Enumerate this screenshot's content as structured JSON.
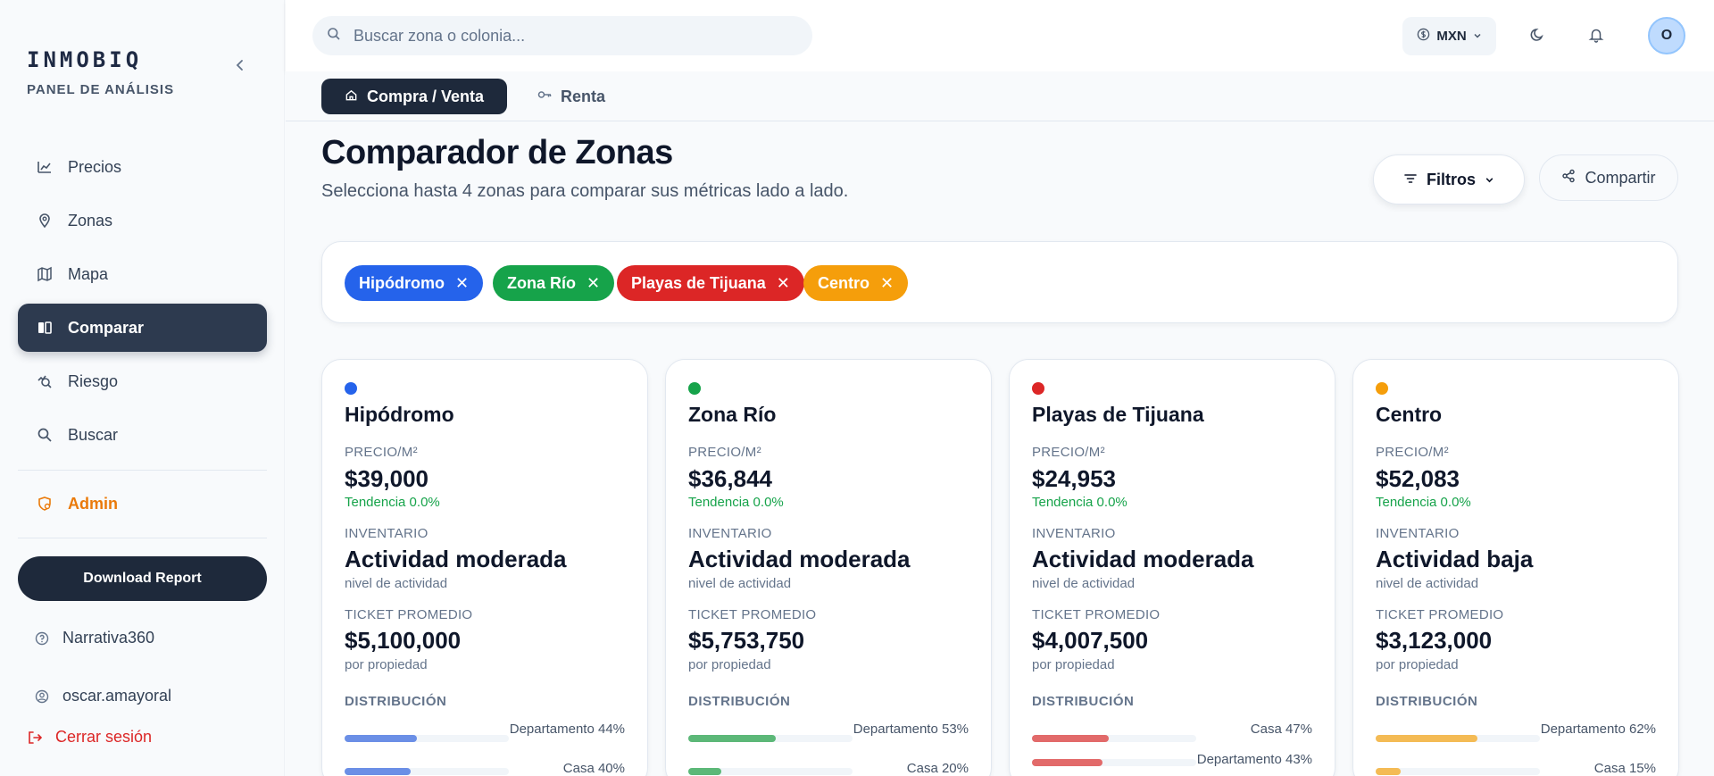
{
  "brand": {
    "name": "INMOBIQ",
    "subtitle": "PANEL DE ANÁLISIS"
  },
  "nav": [
    {
      "label": "Precios",
      "icon": "chart-line-icon"
    },
    {
      "label": "Zonas",
      "icon": "map-pin-icon"
    },
    {
      "label": "Mapa",
      "icon": "map-icon"
    },
    {
      "label": "Comparar",
      "icon": "compare-icon",
      "active": true
    },
    {
      "label": "Riesgo",
      "icon": "risk-icon"
    },
    {
      "label": "Buscar",
      "icon": "search-icon"
    }
  ],
  "admin_label": "Admin",
  "download_label": "Download Report",
  "narrativa_label": "Narrativa360",
  "user_label": "oscar.amayoral",
  "logout_label": "Cerrar sesión",
  "search": {
    "placeholder": "Buscar zona o colonia..."
  },
  "currency": "MXN",
  "avatar_initial": "O",
  "modes": {
    "buy": "Compra / Venta",
    "rent": "Renta"
  },
  "header": {
    "title": "Comparador de Zonas",
    "subtitle": "Selecciona hasta 4 zonas para comparar sus métricas lado a lado.",
    "filters": "Filtros",
    "share": "Compartir"
  },
  "chips": [
    {
      "label": "Hipódromo",
      "color": "#2563eb"
    },
    {
      "label": "Zona Río",
      "color": "#16a34a"
    },
    {
      "label": "Playas de Tijuana",
      "color": "#dc2626"
    },
    {
      "label": "Centro",
      "color": "#f59e0b"
    }
  ],
  "labels": {
    "price": "PRECIO/M²",
    "inventory": "INVENTARIO",
    "ticket": "TICKET PROMEDIO",
    "distribution": "DISTRIBUCIÓN",
    "activity_note": "nivel de actividad",
    "ticket_note": "por propiedad"
  },
  "cards": [
    {
      "name": "Hipódromo",
      "color": "#2563eb",
      "bar": "#6b8fe6",
      "price": "$39,000",
      "trend": "Tendencia 0.0%",
      "inventory": "Actividad moderada",
      "ticket": "$5,100,000",
      "dist": [
        {
          "label": "Departamento 44%",
          "pct": 44
        },
        {
          "label": "Casa 40%",
          "pct": 40
        }
      ]
    },
    {
      "name": "Zona Río",
      "color": "#16a34a",
      "bar": "#5cb878",
      "price": "$36,844",
      "trend": "Tendencia 0.0%",
      "inventory": "Actividad moderada",
      "ticket": "$5,753,750",
      "dist": [
        {
          "label": "Departamento 53%",
          "pct": 53
        },
        {
          "label": "Casa 20%",
          "pct": 20
        }
      ]
    },
    {
      "name": "Playas de Tijuana",
      "color": "#dc2626",
      "bar": "#e26a6a",
      "price": "$24,953",
      "trend": "Tendencia 0.0%",
      "inventory": "Actividad moderada",
      "ticket": "$4,007,500",
      "dist": [
        {
          "label": "Casa 47%",
          "pct": 47
        },
        {
          "label": "Departamento 43%",
          "pct": 43
        }
      ]
    },
    {
      "name": "Centro",
      "color": "#f59e0b",
      "bar": "#f4bb55",
      "price": "$52,083",
      "trend": "Tendencia 0.0%",
      "inventory": "Actividad baja",
      "ticket": "$3,123,000",
      "dist": [
        {
          "label": "Departamento 62%",
          "pct": 62
        },
        {
          "label": "Casa 15%",
          "pct": 15
        }
      ]
    }
  ]
}
